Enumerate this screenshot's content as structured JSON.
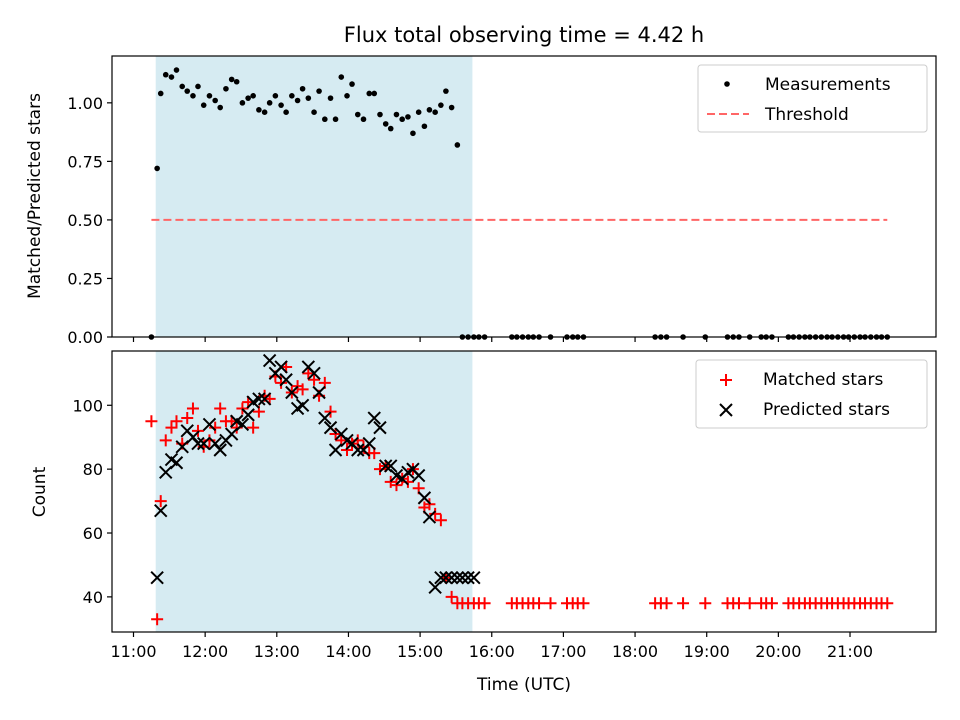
{
  "chart_data": {
    "title": "Flux total observing time = 4.42 h",
    "xlabel": "Time (UTC)",
    "x_unit": "hours UTC",
    "x_ticks": [
      {
        "value": 11,
        "label": "11:00"
      },
      {
        "value": 12,
        "label": "12:00"
      },
      {
        "value": 13,
        "label": "13:00"
      },
      {
        "value": 14,
        "label": "14:00"
      },
      {
        "value": 15,
        "label": "15:00"
      },
      {
        "value": 16,
        "label": "16:00"
      },
      {
        "value": 17,
        "label": "17:00"
      },
      {
        "value": 18,
        "label": "18:00"
      },
      {
        "value": 19,
        "label": "19:00"
      },
      {
        "value": 20,
        "label": "20:00"
      },
      {
        "value": 21,
        "label": "21:00"
      }
    ],
    "xlim": [
      10.7,
      22.2
    ],
    "shaded_span": {
      "x_start": 11.31,
      "x_end": 15.73,
      "color": "#add8e6"
    },
    "panels": [
      {
        "type": "scatter",
        "ylabel": "Matched/Predicted stars",
        "ylim": [
          0,
          1.2
        ],
        "y_ticks": [
          {
            "value": 0,
            "label": "0.00"
          },
          {
            "value": 0.25,
            "label": "0.25"
          },
          {
            "value": 0.5,
            "label": "0.50"
          },
          {
            "value": 0.75,
            "label": "0.75"
          },
          {
            "value": 1.0,
            "label": "1.00"
          }
        ],
        "legend": {
          "position": "upper right",
          "entries": [
            "Measurements",
            "Threshold"
          ]
        },
        "series": [
          {
            "name": "Measurements",
            "marker": "dot",
            "color": "#000000",
            "x": [
              11.25,
              11.33,
              11.38,
              11.45,
              11.53,
              11.6,
              11.68,
              11.75,
              11.83,
              11.9,
              11.98,
              12.06,
              12.14,
              12.21,
              12.29,
              12.37,
              12.44,
              12.52,
              12.6,
              12.67,
              12.75,
              12.83,
              12.9,
              12.98,
              13.06,
              13.13,
              13.21,
              13.29,
              13.36,
              13.44,
              13.52,
              13.59,
              13.67,
              13.75,
              13.82,
              13.9,
              13.98,
              14.05,
              14.13,
              14.21,
              14.29,
              14.36,
              14.44,
              14.52,
              14.59,
              14.67,
              14.75,
              14.83,
              14.9,
              14.98,
              15.06,
              15.13,
              15.21,
              15.29,
              15.36,
              15.44,
              15.52,
              15.59,
              15.67,
              15.75,
              15.82,
              15.9,
              16.28,
              16.35,
              16.43,
              16.51,
              16.58,
              16.66,
              16.82,
              17.05,
              17.13,
              17.2,
              17.28,
              18.28,
              18.36,
              18.44,
              18.67,
              18.98,
              19.29,
              19.37,
              19.45,
              19.6,
              19.76,
              19.83,
              19.91,
              20.14,
              20.21,
              20.29,
              20.37,
              20.44,
              20.52,
              20.6,
              20.68,
              20.75,
              20.83,
              20.91,
              20.98,
              21.06,
              21.14,
              21.21,
              21.29,
              21.37,
              21.44,
              21.52
            ],
            "y": [
              0.0,
              0.72,
              1.04,
              1.12,
              1.11,
              1.14,
              1.07,
              1.05,
              1.03,
              1.07,
              0.99,
              1.03,
              1.01,
              0.98,
              1.06,
              1.1,
              1.09,
              1.0,
              1.02,
              1.03,
              0.97,
              0.96,
              1.0,
              1.03,
              0.99,
              0.96,
              1.03,
              1.01,
              1.06,
              1.02,
              0.96,
              1.05,
              0.93,
              1.02,
              0.93,
              1.11,
              1.03,
              1.08,
              0.95,
              0.93,
              1.04,
              1.04,
              0.95,
              0.91,
              0.89,
              0.95,
              0.93,
              0.94,
              0.87,
              0.96,
              0.9,
              0.97,
              0.96,
              0.99,
              1.05,
              0.98,
              0.82,
              0.0,
              0.0,
              0.0,
              0.0,
              0.0,
              0.0,
              0.0,
              0.0,
              0.0,
              0.0,
              0.0,
              0.0,
              0.0,
              0.0,
              0.0,
              0.0,
              0.0,
              0.0,
              0.0,
              0.0,
              0.0,
              0.0,
              0.0,
              0.0,
              0.0,
              0.0,
              0.0,
              0.0,
              0.0,
              0.0,
              0.0,
              0.0,
              0.0,
              0.0,
              0.0,
              0.0,
              0.0,
              0.0,
              0.0,
              0.0,
              0.0,
              0.0,
              0.0,
              0.0,
              0.0,
              0.0,
              0.0
            ]
          },
          {
            "name": "Threshold",
            "style": "dashed-line",
            "color": "#ff6666",
            "x": [
              11.25,
              21.52
            ],
            "y": [
              0.5,
              0.5
            ]
          }
        ]
      },
      {
        "type": "scatter",
        "ylabel": "Count",
        "ylim": [
          29,
          117
        ],
        "y_ticks": [
          {
            "value": 40,
            "label": "40"
          },
          {
            "value": 60,
            "label": "60"
          },
          {
            "value": 80,
            "label": "80"
          },
          {
            "value": 100,
            "label": "100"
          }
        ],
        "legend": {
          "position": "upper right",
          "entries": [
            "Matched stars",
            "Predicted stars"
          ]
        },
        "series": [
          {
            "name": "Matched stars",
            "marker": "plus",
            "color": "#ff0000",
            "x": [
              11.25,
              11.33,
              11.38,
              11.45,
              11.53,
              11.6,
              11.68,
              11.75,
              11.83,
              11.9,
              11.98,
              12.06,
              12.14,
              12.21,
              12.29,
              12.37,
              12.44,
              12.52,
              12.6,
              12.67,
              12.75,
              12.83,
              12.9,
              12.98,
              13.06,
              13.13,
              13.21,
              13.29,
              13.36,
              13.44,
              13.52,
              13.59,
              13.67,
              13.75,
              13.82,
              13.9,
              13.98,
              14.05,
              14.13,
              14.21,
              14.29,
              14.36,
              14.44,
              14.52,
              14.59,
              14.67,
              14.75,
              14.83,
              14.9,
              14.98,
              15.06,
              15.13,
              15.21,
              15.29,
              15.36,
              15.44,
              15.52,
              15.59,
              15.67,
              15.75,
              15.82,
              15.9,
              16.28,
              16.35,
              16.43,
              16.51,
              16.58,
              16.66,
              16.82,
              17.05,
              17.13,
              17.2,
              17.28,
              18.28,
              18.36,
              18.44,
              18.67,
              18.98,
              19.29,
              19.37,
              19.45,
              19.6,
              19.76,
              19.83,
              19.91,
              20.14,
              20.21,
              20.29,
              20.37,
              20.44,
              20.52,
              20.6,
              20.68,
              20.75,
              20.83,
              20.91,
              20.98,
              21.06,
              21.14,
              21.21,
              21.29,
              21.37,
              21.44,
              21.52
            ],
            "y": [
              95,
              33,
              70,
              89,
              93,
              95,
              88,
              96,
              99,
              92,
              87,
              89,
              93,
              99,
              95,
              95,
              93,
              99,
              101,
              93,
              98,
              103,
              102,
              109,
              107,
              112,
              104,
              106,
              105,
              110,
              108,
              103,
              107,
              98,
              91,
              89,
              86,
              88,
              89,
              87,
              85,
              85,
              80,
              81,
              76,
              75,
              77,
              76,
              80,
              74,
              68,
              69,
              66,
              64,
              46,
              40,
              38,
              38,
              38,
              38,
              38,
              38,
              38,
              38,
              38,
              38,
              38,
              38,
              38,
              38,
              38,
              38,
              38,
              38,
              38,
              38,
              38,
              38,
              38,
              38,
              38,
              38,
              38,
              38,
              38,
              38,
              38,
              38,
              38,
              38,
              38,
              38,
              38,
              38,
              38,
              38,
              38,
              38,
              38,
              38,
              38,
              38,
              38,
              38
            ]
          },
          {
            "name": "Predicted stars",
            "marker": "x",
            "color": "#000000",
            "x": [
              11.33,
              11.38,
              11.45,
              11.53,
              11.6,
              11.68,
              11.75,
              11.83,
              11.9,
              11.98,
              12.06,
              12.14,
              12.21,
              12.29,
              12.37,
              12.44,
              12.52,
              12.6,
              12.67,
              12.75,
              12.83,
              12.9,
              12.98,
              13.06,
              13.13,
              13.21,
              13.29,
              13.36,
              13.44,
              13.52,
              13.59,
              13.67,
              13.75,
              13.82,
              13.9,
              13.98,
              14.05,
              14.13,
              14.21,
              14.29,
              14.36,
              14.44,
              14.52,
              14.59,
              14.67,
              14.75,
              14.83,
              14.9,
              14.98,
              15.06,
              15.13,
              15.21,
              15.29,
              15.36,
              15.44,
              15.52,
              15.59,
              15.67,
              15.75
            ],
            "y": [
              46,
              67,
              79,
              83,
              82,
              87,
              92,
              90,
              88,
              88,
              94,
              88,
              86,
              89,
              91,
              95,
              94,
              97,
              101,
              102,
              102,
              114,
              110,
              112,
              108,
              104,
              99,
              100,
              112,
              110,
              104,
              96,
              93,
              86,
              91,
              89,
              88,
              86,
              86,
              88,
              96,
              93,
              81,
              81,
              78,
              77,
              79,
              80,
              78,
              71,
              65,
              43,
              46,
              46,
              46,
              46,
              46,
              46,
              46
            ]
          }
        ]
      }
    ]
  }
}
